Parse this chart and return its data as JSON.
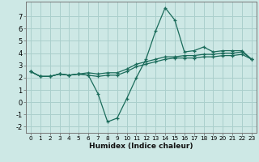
{
  "title": "",
  "xlabel": "Humidex (Indice chaleur)",
  "background_color": "#cde8e5",
  "grid_color": "#aacfcc",
  "line_color": "#1a6b5a",
  "x_values": [
    0,
    1,
    2,
    3,
    4,
    5,
    6,
    7,
    8,
    9,
    10,
    11,
    12,
    13,
    14,
    15,
    16,
    17,
    18,
    19,
    20,
    21,
    22,
    23
  ],
  "series1": [
    2.5,
    2.1,
    2.1,
    2.3,
    2.2,
    2.3,
    2.2,
    0.7,
    -1.6,
    -1.3,
    0.3,
    2.0,
    3.5,
    5.8,
    7.7,
    6.7,
    4.1,
    4.2,
    4.5,
    4.1,
    4.2,
    4.2,
    4.2,
    3.5
  ],
  "series2": [
    2.5,
    2.1,
    2.1,
    2.3,
    2.2,
    2.3,
    2.2,
    2.1,
    2.2,
    2.2,
    2.5,
    2.9,
    3.1,
    3.3,
    3.5,
    3.6,
    3.6,
    3.6,
    3.7,
    3.7,
    3.8,
    3.8,
    3.9,
    3.5
  ],
  "series3": [
    2.5,
    2.1,
    2.1,
    2.3,
    2.2,
    2.3,
    2.4,
    2.3,
    2.4,
    2.4,
    2.7,
    3.1,
    3.3,
    3.5,
    3.7,
    3.7,
    3.8,
    3.8,
    3.9,
    3.9,
    4.0,
    4.0,
    4.1,
    3.5
  ],
  "ylim": [
    -2.5,
    8.2
  ],
  "xlim": [
    -0.5,
    23.5
  ],
  "yticks": [
    -2,
    -1,
    0,
    1,
    2,
    3,
    4,
    5,
    6,
    7
  ],
  "xticks": [
    0,
    1,
    2,
    3,
    4,
    5,
    6,
    7,
    8,
    9,
    10,
    11,
    12,
    13,
    14,
    15,
    16,
    17,
    18,
    19,
    20,
    21,
    22,
    23
  ],
  "tick_fontsize": 5.2,
  "ylabel_fontsize": 6.0,
  "xlabel_fontsize": 6.5
}
